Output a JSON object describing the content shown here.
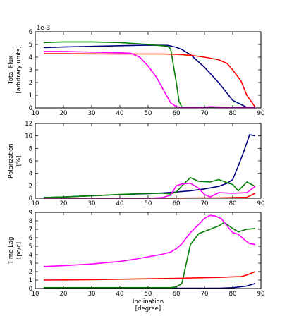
{
  "chart_data": [
    {
      "type": "line",
      "ylabel_line1": "Total Flux",
      "ylabel_line2": "[arbitrary units]",
      "offset_text": "1e-3",
      "xlim": [
        10,
        90
      ],
      "ylim": [
        0,
        6
      ],
      "xticks": [
        "10",
        "20",
        "30",
        "40",
        "50",
        "60",
        "70",
        "80",
        "90"
      ],
      "yticks": [
        "0",
        "1",
        "2",
        "3",
        "4",
        "5",
        "6"
      ],
      "series": [
        {
          "color": "#00007f",
          "x": [
            13,
            20,
            30,
            40,
            50,
            57,
            60,
            62,
            65,
            70,
            75,
            80,
            85,
            88
          ],
          "y": [
            4.75,
            4.8,
            4.85,
            4.9,
            4.95,
            4.93,
            4.78,
            4.6,
            4.2,
            3.2,
            2.0,
            0.6,
            0.05,
            0.0
          ]
        },
        {
          "color": "#007f00",
          "x": [
            13,
            20,
            30,
            40,
            50,
            57,
            58,
            60,
            61,
            62,
            65,
            70,
            80,
            88
          ],
          "y": [
            5.15,
            5.2,
            5.2,
            5.15,
            5.0,
            4.85,
            4.65,
            2.0,
            0.5,
            0.05,
            0.03,
            0.03,
            0.03,
            0.03
          ]
        },
        {
          "color": "#ff0000",
          "x": [
            13,
            20,
            30,
            40,
            50,
            55,
            60,
            65,
            70,
            75,
            78,
            80,
            83,
            85,
            88
          ],
          "y": [
            4.27,
            4.27,
            4.26,
            4.25,
            4.25,
            4.25,
            4.22,
            4.15,
            4.0,
            3.8,
            3.5,
            3.0,
            2.1,
            1.0,
            0.05
          ]
        },
        {
          "color": "#ff00ff",
          "x": [
            13,
            20,
            30,
            40,
            44,
            47,
            50,
            53,
            55,
            58,
            60,
            62,
            65,
            70,
            72,
            75,
            80,
            88
          ],
          "y": [
            4.45,
            4.45,
            4.4,
            4.35,
            4.3,
            4.0,
            3.3,
            2.4,
            1.6,
            0.4,
            0.1,
            0.05,
            0.03,
            0.05,
            0.1,
            0.07,
            0.05,
            0.03
          ]
        }
      ]
    },
    {
      "type": "line",
      "ylabel_line1": "Polarization",
      "ylabel_line2": "[%]",
      "xlim": [
        10,
        90
      ],
      "ylim": [
        0,
        12
      ],
      "xticks": [
        "10",
        "20",
        "30",
        "40",
        "50",
        "60",
        "70",
        "80",
        "90"
      ],
      "yticks": [
        "0",
        "2",
        "4",
        "6",
        "8",
        "10",
        "12"
      ],
      "series": [
        {
          "color": "#00007f",
          "x": [
            13,
            20,
            30,
            40,
            50,
            55,
            60,
            65,
            70,
            75,
            78,
            80,
            82,
            84,
            86,
            88
          ],
          "y": [
            0.1,
            0.2,
            0.4,
            0.6,
            0.75,
            0.85,
            1.0,
            1.2,
            1.5,
            1.9,
            2.4,
            3.0,
            5.2,
            7.6,
            10.2,
            10.0
          ]
        },
        {
          "color": "#007f00",
          "x": [
            13,
            20,
            30,
            40,
            50,
            55,
            58,
            60,
            62,
            65,
            68,
            72,
            75,
            78,
            80,
            82,
            85,
            88
          ],
          "y": [
            0.1,
            0.2,
            0.4,
            0.6,
            0.8,
            0.8,
            0.7,
            1.0,
            2.0,
            3.3,
            2.7,
            2.6,
            3.0,
            2.5,
            2.2,
            1.2,
            2.6,
            1.9
          ]
        },
        {
          "color": "#ff0000",
          "x": [
            13,
            20,
            30,
            40,
            50,
            55,
            60,
            65,
            70,
            75,
            80,
            85,
            88
          ],
          "y": [
            0.0,
            0.0,
            0.0,
            0.0,
            0.0,
            0.0,
            0.02,
            0.03,
            0.04,
            0.05,
            0.1,
            0.15,
            0.8
          ]
        },
        {
          "color": "#ff00ff",
          "x": [
            13,
            20,
            30,
            40,
            50,
            55,
            58,
            60,
            62,
            65,
            68,
            70,
            72,
            75,
            80,
            85,
            88
          ],
          "y": [
            0.0,
            0.0,
            0.0,
            0.0,
            0.0,
            0.1,
            0.5,
            2.0,
            2.3,
            2.4,
            1.6,
            0.6,
            0.2,
            0.9,
            0.8,
            0.9,
            1.9
          ]
        }
      ]
    },
    {
      "type": "line",
      "ylabel_line1": "Time Lag",
      "ylabel_line2": "[pc/c]",
      "xlabel_line1": "Inclination",
      "xlabel_line2": "[degree]",
      "xlim": [
        10,
        90
      ],
      "ylim": [
        0,
        9
      ],
      "xticks": [
        "10",
        "20",
        "30",
        "40",
        "50",
        "60",
        "70",
        "80",
        "90"
      ],
      "yticks": [
        "0",
        "1",
        "2",
        "3",
        "4",
        "5",
        "6",
        "7",
        "8",
        "9"
      ],
      "series": [
        {
          "color": "#00007f",
          "x": [
            13,
            20,
            30,
            40,
            50,
            60,
            70,
            75,
            80,
            85,
            88
          ],
          "y": [
            0.03,
            0.03,
            0.03,
            0.03,
            0.03,
            0.03,
            0.03,
            0.03,
            0.1,
            0.3,
            0.6
          ]
        },
        {
          "color": "#007f00",
          "x": [
            13,
            20,
            30,
            40,
            50,
            55,
            58,
            60,
            62,
            65,
            68,
            72,
            75,
            77,
            80,
            82,
            85,
            88
          ],
          "y": [
            0.1,
            0.1,
            0.1,
            0.1,
            0.1,
            0.1,
            0.1,
            0.2,
            0.6,
            5.2,
            6.5,
            7.0,
            7.4,
            7.8,
            7.1,
            6.7,
            7.0,
            7.1
          ]
        },
        {
          "color": "#ff0000",
          "x": [
            13,
            20,
            30,
            40,
            50,
            60,
            70,
            75,
            80,
            83,
            85,
            88
          ],
          "y": [
            1.0,
            1.02,
            1.05,
            1.1,
            1.15,
            1.2,
            1.28,
            1.32,
            1.38,
            1.42,
            1.6,
            2.0
          ]
        },
        {
          "color": "#ff00ff",
          "x": [
            13,
            20,
            30,
            40,
            45,
            50,
            55,
            58,
            60,
            62,
            65,
            68,
            70,
            72,
            74,
            76,
            78,
            80,
            82,
            84,
            86,
            88
          ],
          "y": [
            2.6,
            2.7,
            2.9,
            3.2,
            3.45,
            3.75,
            4.05,
            4.3,
            4.7,
            5.3,
            6.6,
            7.6,
            8.3,
            8.65,
            8.55,
            8.25,
            7.4,
            6.6,
            6.4,
            5.8,
            5.3,
            5.2
          ]
        }
      ]
    }
  ]
}
